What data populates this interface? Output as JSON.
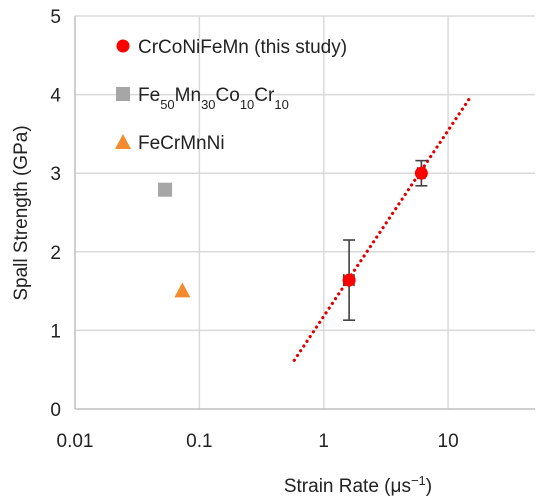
{
  "chart_data": {
    "type": "scatter",
    "xlabel_base": "Strain Rate (μs",
    "xlabel_sup": "−1",
    "xlabel_end": ")",
    "ylabel": "Spall Strength (GPa)",
    "x_scale": "log",
    "xlim": [
      0.01,
      50
    ],
    "ylim": [
      0,
      5
    ],
    "x_ticks": [
      0.01,
      0.1,
      1,
      10
    ],
    "x_tick_labels": [
      "0.01",
      "0.1",
      "1",
      "10"
    ],
    "y_ticks": [
      0,
      1,
      2,
      3,
      4,
      5
    ],
    "y_tick_labels": [
      "0",
      "1",
      "2",
      "3",
      "4",
      "5"
    ],
    "grid": true,
    "legend_position": "top-left",
    "series": [
      {
        "key": "crconifemn",
        "name": "CrCoNiFeMn (this study)",
        "marker": "circle",
        "color": "#ff0000",
        "points": [
          {
            "x": 1.6,
            "y": 1.64,
            "y_err": [
              1.13,
              2.15
            ],
            "x_err": [
              1.45,
              1.75
            ]
          },
          {
            "x": 6.1,
            "y": 3.0,
            "y_err": [
              2.84,
              3.16
            ],
            "x_err": [
              5.7,
              6.5
            ]
          }
        ]
      },
      {
        "key": "femnmncocr",
        "name_parts": [
          {
            "t": "Fe",
            "sub": false
          },
          {
            "t": "50",
            "sub": true
          },
          {
            "t": "Mn",
            "sub": false
          },
          {
            "t": "30",
            "sub": true
          },
          {
            "t": "Co",
            "sub": false
          },
          {
            "t": "10",
            "sub": true
          },
          {
            "t": "Cr",
            "sub": false
          },
          {
            "t": "10",
            "sub": true
          }
        ],
        "marker": "square",
        "color": "#a6a6a6",
        "points": [
          {
            "x": 0.053,
            "y": 2.79
          }
        ]
      },
      {
        "key": "fecrmnni",
        "name": "FeCrMnNi",
        "marker": "triangle",
        "color": "#f28a2e",
        "points": [
          {
            "x": 0.073,
            "y": 1.51
          }
        ]
      }
    ],
    "trendline": {
      "style": "dotted",
      "color": "#e00000",
      "x": [
        0.58,
        15
      ],
      "y": [
        0.62,
        3.96
      ]
    }
  }
}
